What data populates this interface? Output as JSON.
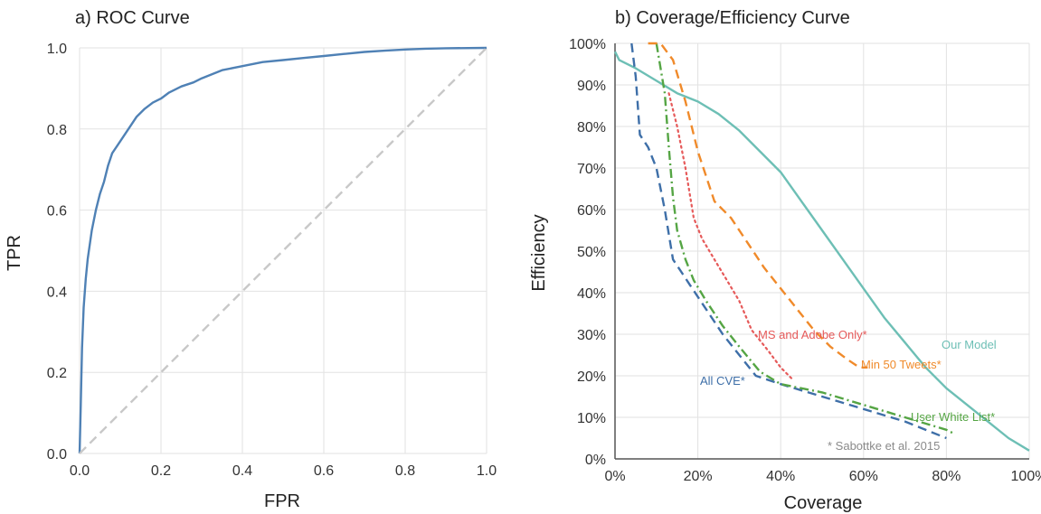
{
  "chart_data": [
    {
      "type": "line",
      "title": "a) ROC Curve",
      "xlabel": "FPR",
      "ylabel": "TPR",
      "xlim": [
        0,
        1
      ],
      "ylim": [
        0,
        1
      ],
      "xticks": [
        "0.0",
        "0.2",
        "0.4",
        "0.6",
        "0.8",
        "1.0"
      ],
      "yticks": [
        "0.0",
        "0.2",
        "0.4",
        "0.6",
        "0.8",
        "1.0"
      ],
      "grid": true,
      "series": [
        {
          "color": "#4f81b5",
          "style": "solid",
          "points": [
            [
              0,
              0
            ],
            [
              0.003,
              0.12
            ],
            [
              0.006,
              0.26
            ],
            [
              0.01,
              0.36
            ],
            [
              0.015,
              0.43
            ],
            [
              0.02,
              0.48
            ],
            [
              0.03,
              0.55
            ],
            [
              0.04,
              0.6
            ],
            [
              0.05,
              0.64
            ],
            [
              0.06,
              0.67
            ],
            [
              0.07,
              0.71
            ],
            [
              0.08,
              0.74
            ],
            [
              0.1,
              0.77
            ],
            [
              0.12,
              0.8
            ],
            [
              0.14,
              0.83
            ],
            [
              0.16,
              0.85
            ],
            [
              0.18,
              0.865
            ],
            [
              0.2,
              0.875
            ],
            [
              0.22,
              0.89
            ],
            [
              0.25,
              0.905
            ],
            [
              0.28,
              0.915
            ],
            [
              0.3,
              0.925
            ],
            [
              0.35,
              0.945
            ],
            [
              0.4,
              0.955
            ],
            [
              0.45,
              0.965
            ],
            [
              0.5,
              0.97
            ],
            [
              0.55,
              0.975
            ],
            [
              0.6,
              0.98
            ],
            [
              0.65,
              0.985
            ],
            [
              0.7,
              0.99
            ],
            [
              0.75,
              0.993
            ],
            [
              0.8,
              0.996
            ],
            [
              0.85,
              0.998
            ],
            [
              0.9,
              0.999
            ],
            [
              1,
              1
            ]
          ]
        },
        {
          "color": "#c8c8c8",
          "style": "dashed",
          "points": [
            [
              0,
              0
            ],
            [
              1,
              1
            ]
          ]
        }
      ]
    },
    {
      "type": "line",
      "title": "b) Coverage/Efficiency Curve",
      "xlabel": "Coverage",
      "ylabel": "Efficiency",
      "xlim": [
        0,
        100
      ],
      "ylim": [
        0,
        100
      ],
      "xticks": [
        "0%",
        "20%",
        "40%",
        "60%",
        "80%",
        "100%"
      ],
      "yticks": [
        "0%",
        "10%",
        "20%",
        "30%",
        "40%",
        "50%",
        "60%",
        "70%",
        "80%",
        "90%",
        "100%"
      ],
      "grid": true,
      "series": [
        {
          "name": "Our Model",
          "color": "#6dbfb5",
          "style": "solid",
          "points": [
            [
              0,
              98
            ],
            [
              1,
              96
            ],
            [
              5,
              94
            ],
            [
              10,
              91
            ],
            [
              15,
              88
            ],
            [
              20,
              86
            ],
            [
              25,
              83
            ],
            [
              30,
              79
            ],
            [
              35,
              74
            ],
            [
              40,
              69
            ],
            [
              45,
              62
            ],
            [
              50,
              55
            ],
            [
              55,
              48
            ],
            [
              60,
              41
            ],
            [
              65,
              34
            ],
            [
              70,
              28
            ],
            [
              75,
              22
            ],
            [
              80,
              17
            ],
            [
              85,
              13
            ],
            [
              90,
              9
            ],
            [
              95,
              5
            ],
            [
              100,
              2
            ]
          ]
        },
        {
          "name": "All CVE*",
          "color": "#3e6fa8",
          "style": "dashed",
          "points": [
            [
              4,
              100
            ],
            [
              5,
              92
            ],
            [
              6,
              78
            ],
            [
              8,
              75
            ],
            [
              10,
              70
            ],
            [
              12,
              60
            ],
            [
              14,
              48
            ],
            [
              16,
              45
            ],
            [
              18,
              42
            ],
            [
              22,
              36
            ],
            [
              26,
              30
            ],
            [
              30,
              25
            ],
            [
              34,
              20
            ],
            [
              40,
              18
            ],
            [
              50,
              15
            ],
            [
              60,
              12
            ],
            [
              70,
              9
            ],
            [
              80,
              5
            ]
          ]
        },
        {
          "name": "User White List*",
          "color": "#55a544",
          "style": "dashdot",
          "points": [
            [
              10,
              100
            ],
            [
              12,
              88
            ],
            [
              13,
              75
            ],
            [
              14,
              63
            ],
            [
              15,
              55
            ],
            [
              17,
              48
            ],
            [
              19,
              43
            ],
            [
              22,
              38
            ],
            [
              26,
              32
            ],
            [
              30,
              27
            ],
            [
              35,
              21
            ],
            [
              40,
              18
            ],
            [
              50,
              16
            ],
            [
              60,
              13
            ],
            [
              70,
              10
            ],
            [
              80,
              7
            ],
            [
              82,
              6
            ]
          ]
        },
        {
          "name": "MS and Adobe Only*",
          "color": "#e65a5a",
          "style": "dotted",
          "points": [
            [
              13,
              88
            ],
            [
              15,
              80
            ],
            [
              17,
              70
            ],
            [
              19,
              58
            ],
            [
              21,
              53
            ],
            [
              24,
              48
            ],
            [
              27,
              43
            ],
            [
              30,
              38
            ],
            [
              33,
              31
            ],
            [
              37,
              26
            ],
            [
              40,
              22
            ],
            [
              43,
              19
            ]
          ]
        },
        {
          "name": "Min 50 Tweets*",
          "color": "#f08a2a",
          "style": "dashed",
          "points": [
            [
              8,
              100
            ],
            [
              11,
              100
            ],
            [
              14,
              96
            ],
            [
              17,
              86
            ],
            [
              20,
              74
            ],
            [
              24,
              62
            ],
            [
              28,
              58
            ],
            [
              32,
              52
            ],
            [
              36,
              46
            ],
            [
              40,
              41
            ],
            [
              44,
              36
            ],
            [
              48,
              31
            ],
            [
              52,
              27
            ],
            [
              56,
              24
            ],
            [
              59,
              22
            ],
            [
              61,
              22
            ]
          ]
        }
      ],
      "labels": {
        "our_model": "Our Model",
        "all_cve": "All CVE*",
        "user_white_list": "User White List*",
        "ms_adobe": "MS and Adobe Only*",
        "min50": "Min 50 Tweets*",
        "source_note": "* Sabottke et al. 2015"
      }
    }
  ]
}
